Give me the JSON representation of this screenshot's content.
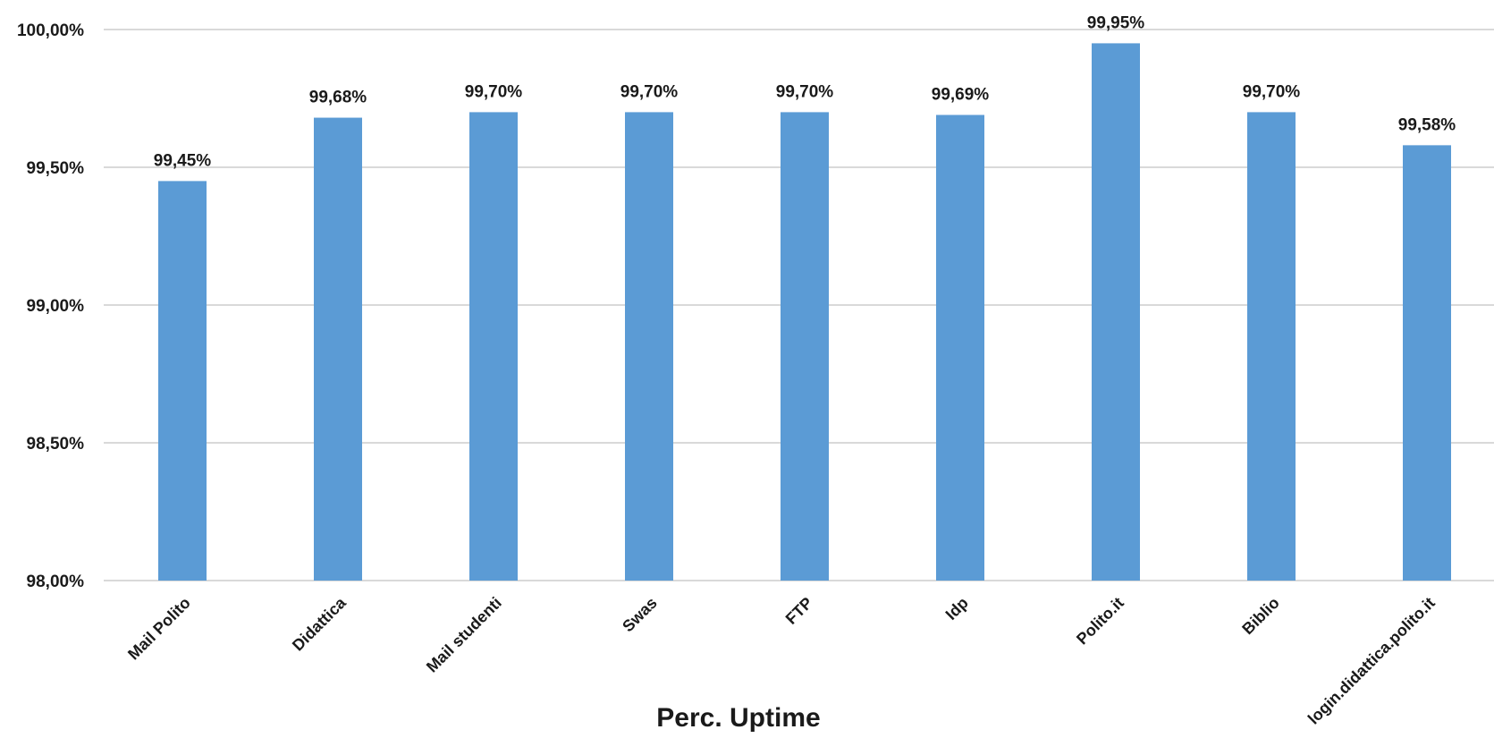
{
  "chart_data": {
    "type": "bar",
    "title": "",
    "xlabel": "Perc. Uptime",
    "ylabel": "",
    "categories": [
      "Mail Polito",
      "Didattica",
      "Mail studenti",
      "Swas",
      "FTP",
      "Idp",
      "Polito.it",
      "Biblio",
      "login.didattica.polito.it"
    ],
    "values": [
      99.45,
      99.68,
      99.7,
      99.7,
      99.7,
      99.69,
      99.95,
      99.7,
      99.58
    ],
    "data_labels": [
      "99,45%",
      "99,68%",
      "99,70%",
      "99,70%",
      "99,70%",
      "99,69%",
      "99,95%",
      "99,70%",
      "99,58%"
    ],
    "ylim": [
      98.0,
      100.0
    ],
    "yticks": [
      98.0,
      98.5,
      99.0,
      99.5,
      100.0
    ],
    "ytick_labels": [
      "98,00%",
      "98,50%",
      "99,00%",
      "99,50%",
      "100,00%"
    ],
    "grid": true,
    "legend": "none",
    "bar_color": "#5b9bd5"
  }
}
